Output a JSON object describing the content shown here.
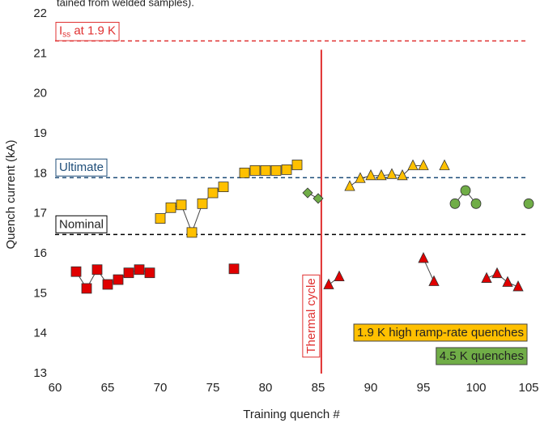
{
  "chart_data": {
    "type": "scatter",
    "caption_fragment": "tained from welded samples).",
    "x_label": "Training quench #",
    "y_label": "Quench current (kA)",
    "xlim": [
      60,
      105
    ],
    "ylim": [
      13,
      22
    ],
    "xticks": [
      60,
      65,
      70,
      75,
      80,
      85,
      90,
      95,
      100,
      105
    ],
    "yticks": [
      13,
      14,
      15,
      16,
      17,
      18,
      19,
      20,
      21,
      22
    ],
    "series": [
      {
        "color": "#e00000",
        "marker": "square",
        "line": true,
        "x": [
          62,
          63,
          64,
          65,
          66,
          67,
          68,
          69
        ],
        "values": [
          15.55,
          15.13,
          15.6,
          15.23,
          15.35,
          15.52,
          15.6,
          15.52
        ]
      },
      {
        "color": "#e00000",
        "marker": "square",
        "line": false,
        "x": [
          77
        ],
        "values": [
          15.62
        ]
      },
      {
        "name": "1.9 K high ramp-rate quenches",
        "color": "#ffc000",
        "marker": "square",
        "line": true,
        "x": [
          70,
          71,
          72,
          73,
          74,
          75,
          76
        ],
        "values": [
          16.88,
          17.15,
          17.22,
          16.53,
          17.25,
          17.52,
          17.67
        ]
      },
      {
        "color": "#ffc000",
        "marker": "square",
        "line": false,
        "x": [
          78,
          79,
          80,
          81,
          82,
          83
        ],
        "values": [
          18.02,
          18.08,
          18.08,
          18.08,
          18.1,
          18.22
        ]
      },
      {
        "name": "4.5 K quenches",
        "color": "#70ad47",
        "marker": "diamond",
        "line": true,
        "x": [
          84,
          85
        ],
        "values": [
          17.52,
          17.38
        ]
      },
      {
        "color": "#e00000",
        "marker": "triangle",
        "line": true,
        "x": [
          86,
          87
        ],
        "values": [
          15.22,
          15.42
        ]
      },
      {
        "color": "#ffc000",
        "marker": "triangle",
        "line": true,
        "x": [
          88,
          89,
          90,
          91,
          92,
          93,
          94,
          95
        ],
        "values": [
          17.68,
          17.88,
          17.95,
          17.95,
          17.98,
          17.95,
          18.2,
          18.2
        ]
      },
      {
        "color": "#e00000",
        "marker": "triangle",
        "line": true,
        "x": [
          95,
          96
        ],
        "values": [
          15.88,
          15.3
        ]
      },
      {
        "color": "#ffc000",
        "marker": "triangle",
        "line": false,
        "x": [
          97
        ],
        "values": [
          18.2
        ]
      },
      {
        "color": "#70ad47",
        "marker": "circle",
        "line": true,
        "x": [
          98,
          99,
          100
        ],
        "values": [
          17.25,
          17.58,
          17.25
        ]
      },
      {
        "color": "#e00000",
        "marker": "triangle",
        "line": true,
        "x": [
          101,
          102,
          103,
          104
        ],
        "values": [
          15.38,
          15.5,
          15.28,
          15.17
        ]
      },
      {
        "color": "#70ad47",
        "marker": "circle",
        "line": false,
        "x": [
          105
        ],
        "values": [
          17.25
        ]
      }
    ],
    "reference_lines": [
      {
        "label_main": "I",
        "label_sub": "ss",
        "label_rest": " at 1.9 K",
        "value": 21.32,
        "color": "#e03030"
      },
      {
        "label": "Ultimate",
        "value": 17.9,
        "color": "#1f4e79"
      },
      {
        "label": "Nominal",
        "value": 16.48,
        "color": "#000000"
      }
    ],
    "vertical_line": {
      "label": "Thermal cycle",
      "x": 85.3,
      "color": "#e03030"
    }
  }
}
